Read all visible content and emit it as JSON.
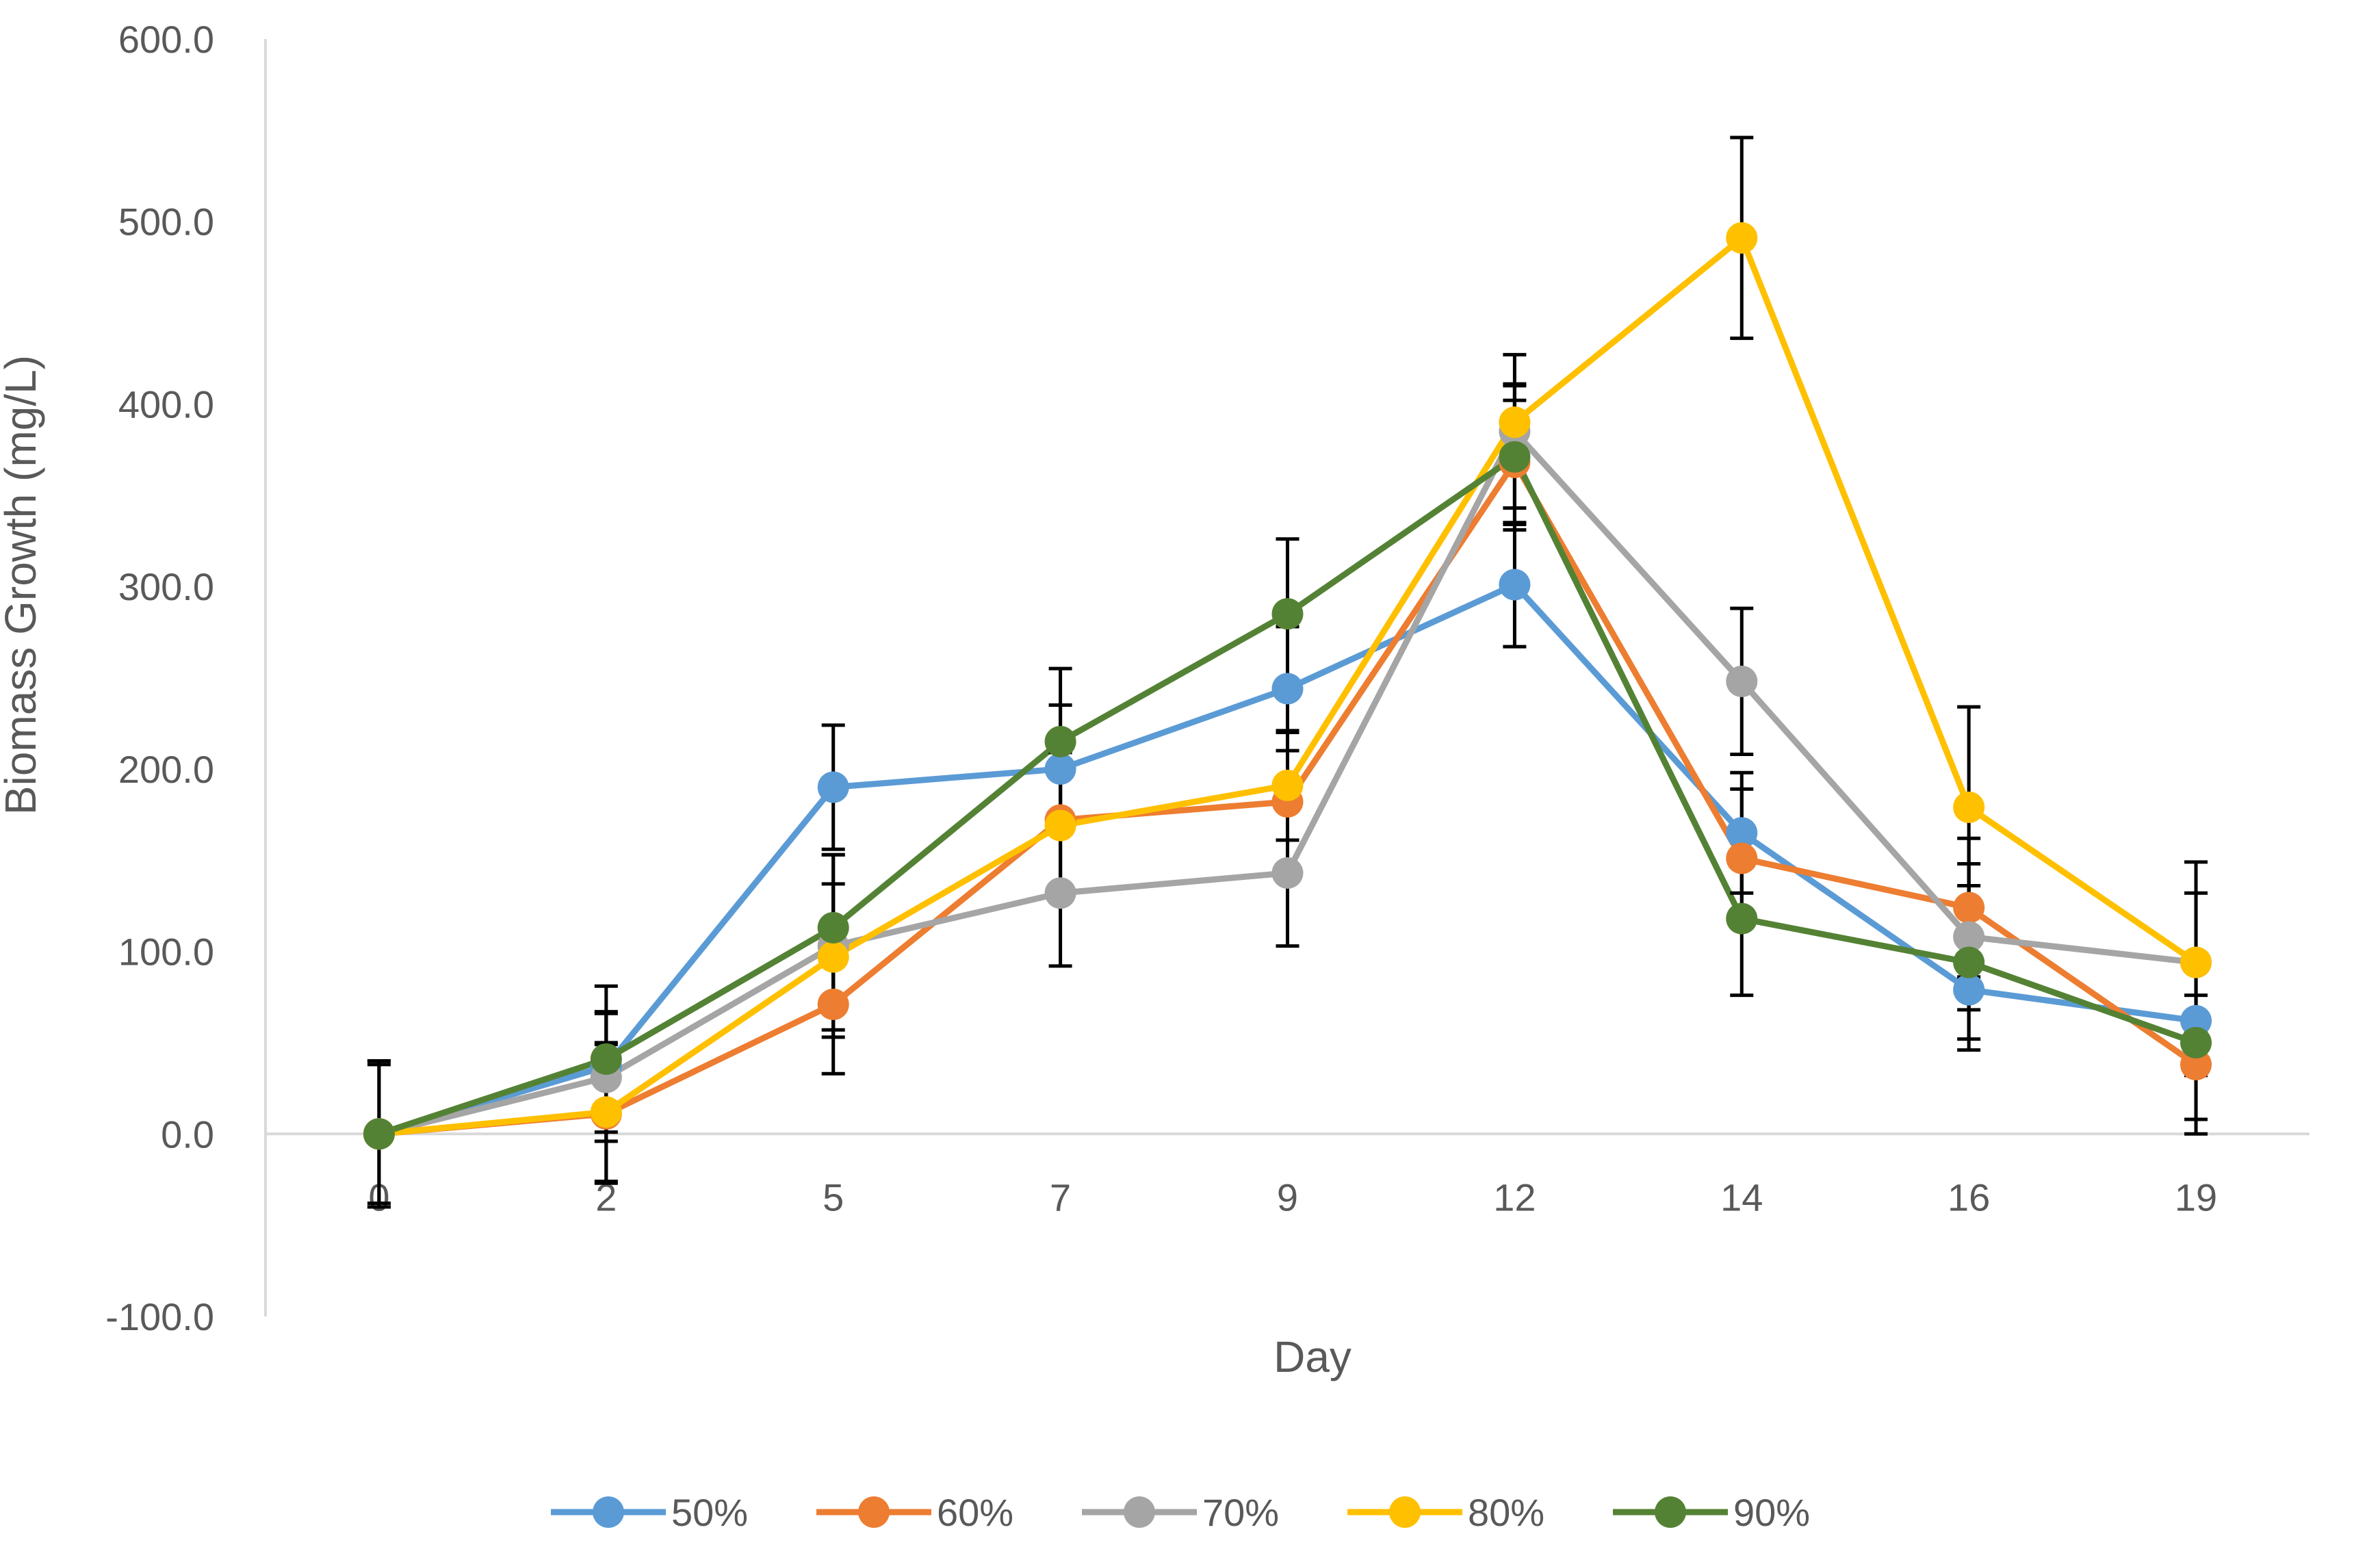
{
  "chart_data": {
    "type": "line",
    "title": "",
    "xlabel": "Day",
    "ylabel": "Biomass Growth (mg/L)",
    "categories": [
      "0",
      "2",
      "5",
      "7",
      "9",
      "12",
      "14",
      "16",
      "19"
    ],
    "ylim": [
      -100,
      600
    ],
    "yticks": [
      600,
      500,
      400,
      300,
      200,
      100,
      0,
      -100
    ],
    "ytick_labels": [
      "600.0",
      "500.0",
      "400.0",
      "300.0",
      "200.0",
      "100.0",
      "0.0",
      "-100.0"
    ],
    "gridlines": false,
    "legend_position": "bottom",
    "error_bars": true,
    "series": [
      {
        "name": "50%",
        "color": "#5B9BD5",
        "values": [
          0,
          37,
          190,
          200,
          244,
          301,
          165,
          79,
          62
        ],
        "errors": [
          40,
          30,
          34,
          35,
          34,
          34,
          33,
          33,
          30
        ]
      },
      {
        "name": "60%",
        "color": "#ED7D31",
        "values": [
          0,
          11,
          71,
          172,
          182,
          368,
          151,
          124,
          38
        ],
        "errors": [
          40,
          38,
          38,
          40,
          38,
          34,
          38,
          38,
          38
        ]
      },
      {
        "name": "70%",
        "color": "#A5A5A5",
        "values": [
          0,
          31,
          103,
          132,
          143,
          385,
          248,
          108,
          94
        ],
        "errors": [
          38,
          35,
          50,
          40,
          40,
          42,
          40,
          40,
          38
        ]
      },
      {
        "name": "80%",
        "color": "#FFC000",
        "values": [
          0,
          12,
          97,
          169,
          191,
          390,
          491,
          179,
          94
        ],
        "errors": [
          40,
          38,
          40,
          40,
          30,
          20,
          55,
          55,
          55
        ]
      },
      {
        "name": "90%",
        "color": "#548235",
        "values": [
          0,
          41,
          113,
          215,
          285,
          371,
          118,
          94,
          50
        ],
        "errors": [
          40,
          40,
          40,
          40,
          41,
          40,
          42,
          42,
          42
        ]
      }
    ]
  }
}
